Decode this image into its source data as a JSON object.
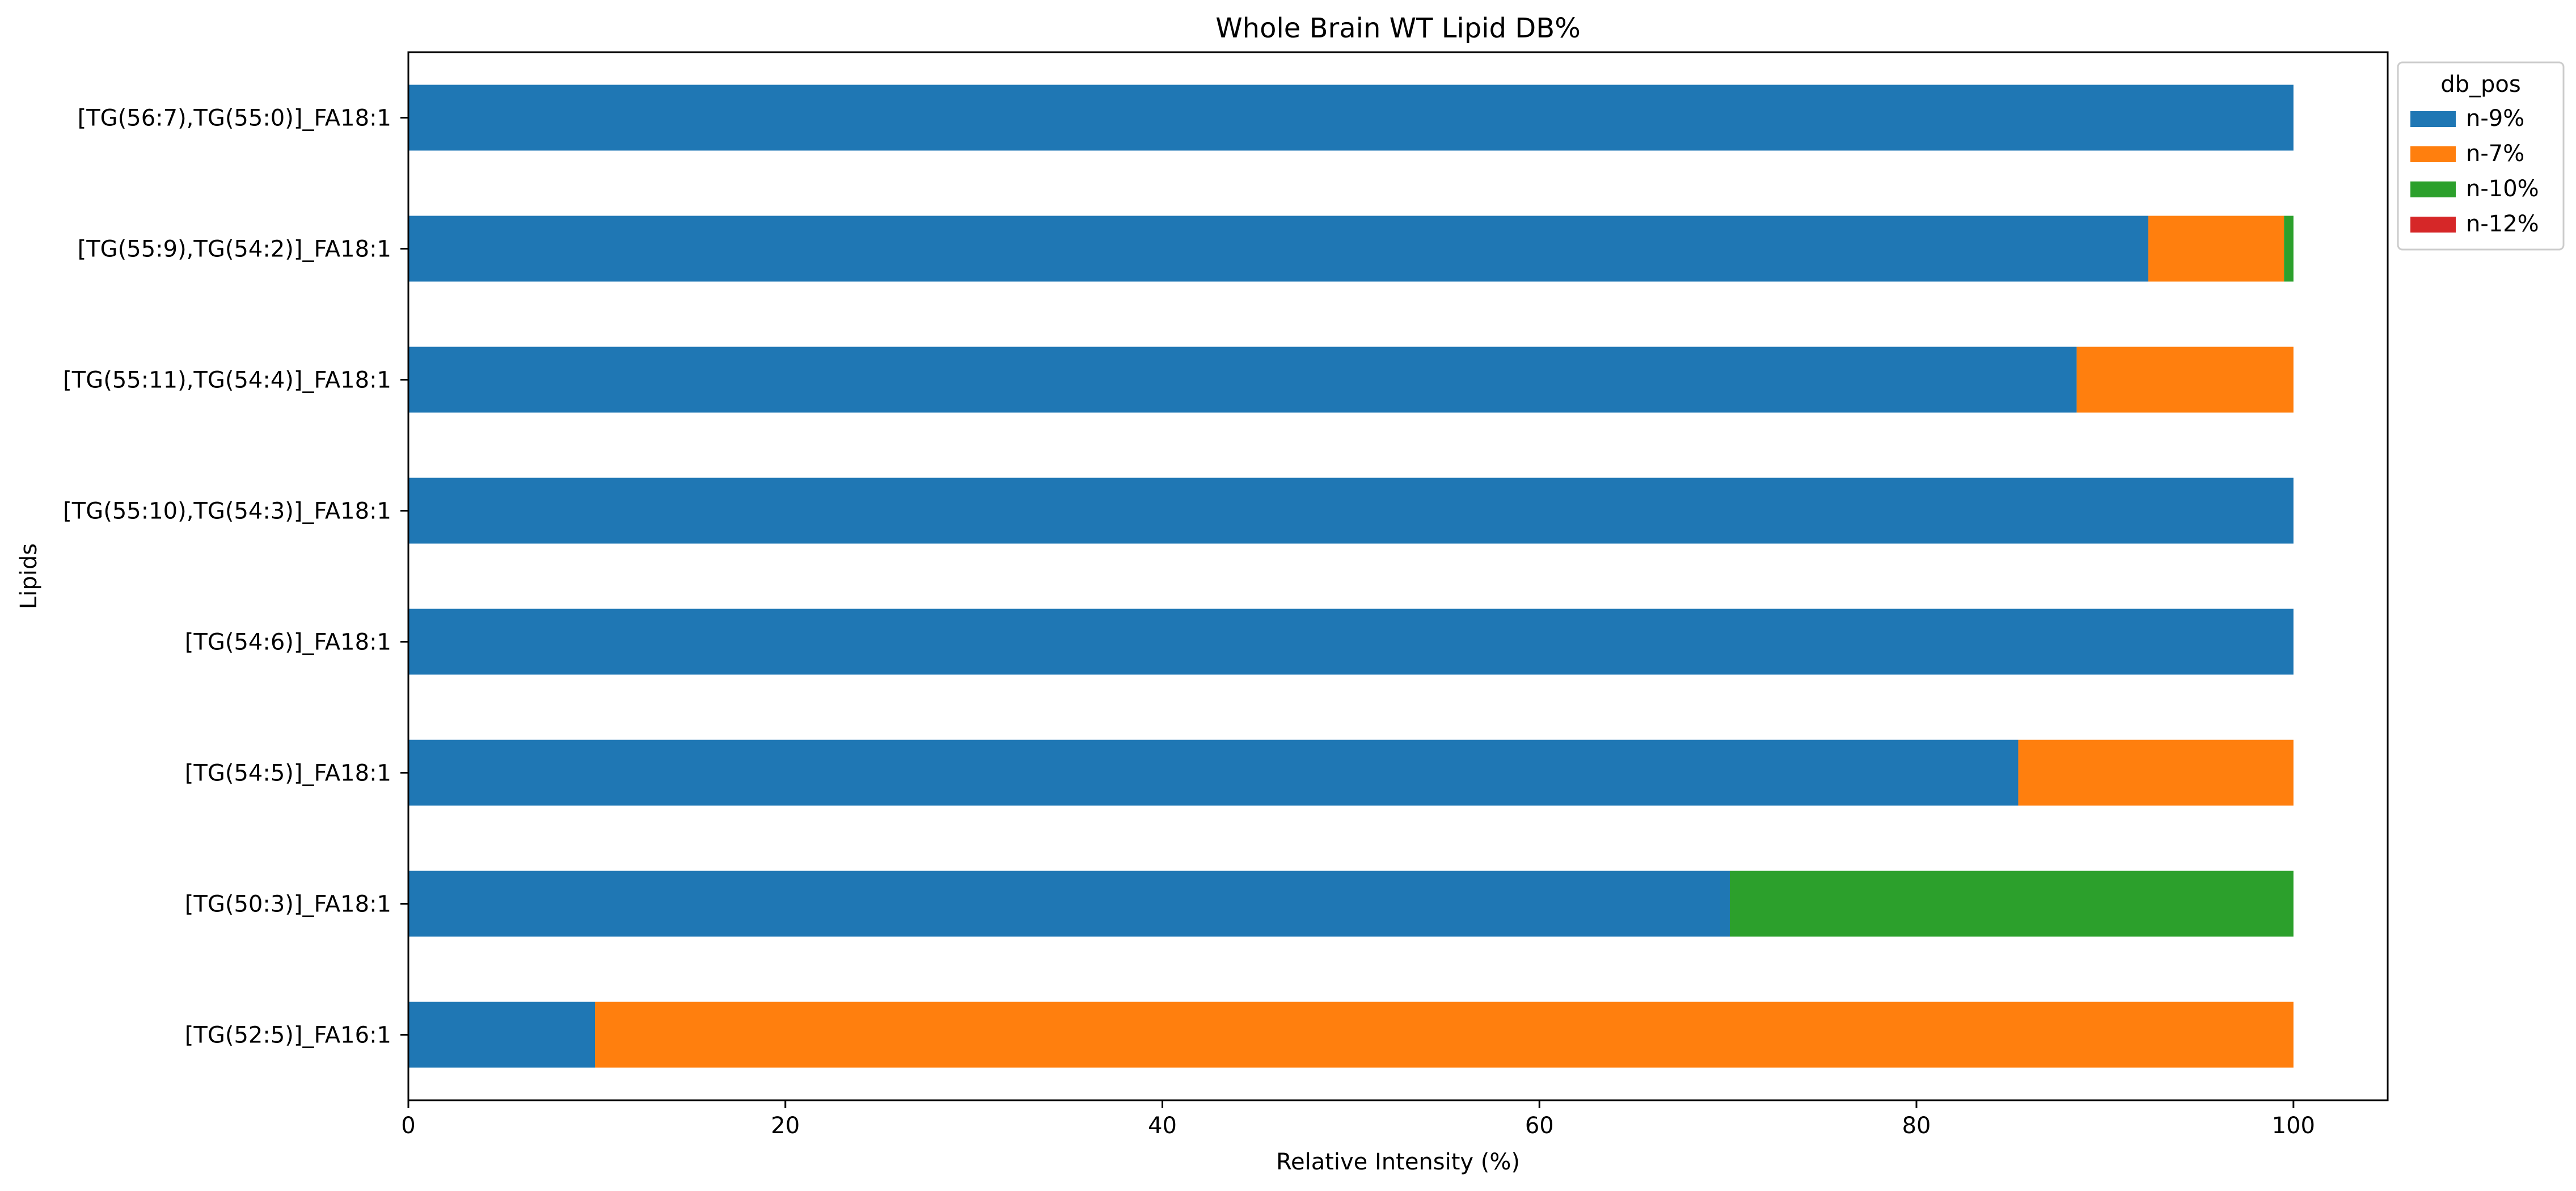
{
  "chart_data": {
    "type": "bar",
    "orientation": "horizontal",
    "stacked": true,
    "title": "Whole Brain WT Lipid DB%",
    "xlabel": "Relative Intensity (%)",
    "ylabel": "Lipids",
    "xlim": [
      0,
      105
    ],
    "xticks": [
      0,
      20,
      40,
      60,
      80,
      100
    ],
    "grid": false,
    "categories": [
      "[TG(52:5)]_FA16:1",
      "[TG(50:3)]_FA18:1",
      "[TG(54:5)]_FA18:1",
      "[TG(54:6)]_FA18:1",
      "[TG(55:10),TG(54:3)]_FA18:1",
      "[TG(55:11),TG(54:4)]_FA18:1",
      "[TG(55:9),TG(54:2)]_FA18:1",
      "[TG(56:7),TG(55:0)]_FA18:1"
    ],
    "series": [
      {
        "name": "n-9%",
        "color": "#1f77b4",
        "values": [
          9.9,
          70.1,
          85.4,
          100,
          100,
          88.5,
          92.3,
          100
        ]
      },
      {
        "name": "n-7%",
        "color": "#ff7f0e",
        "values": [
          90.1,
          0,
          14.6,
          0,
          0,
          11.5,
          7.2,
          0
        ]
      },
      {
        "name": "n-10%",
        "color": "#2ca02c",
        "values": [
          0,
          29.9,
          0,
          0,
          0,
          0,
          0.5,
          0
        ]
      },
      {
        "name": "n-12%",
        "color": "#d62728",
        "values": [
          0,
          0,
          0,
          0,
          0,
          0,
          0,
          0
        ]
      }
    ],
    "legend": {
      "title": "db_pos",
      "placement": "outside top-right"
    }
  }
}
